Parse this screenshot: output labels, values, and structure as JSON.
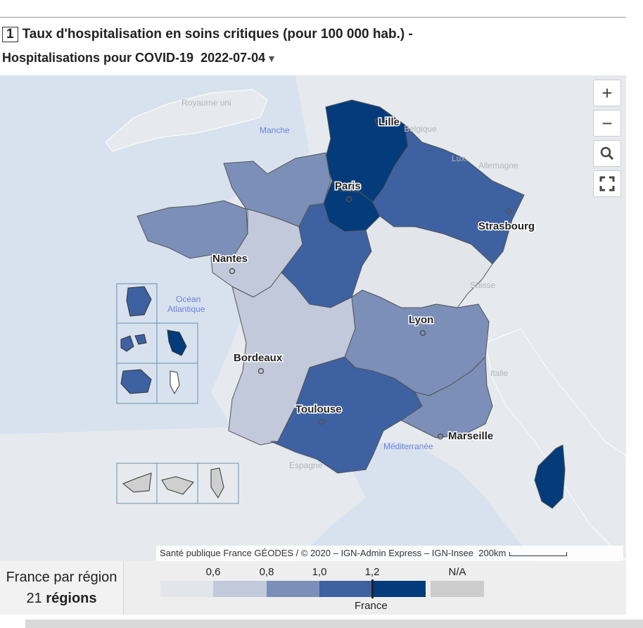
{
  "title": {
    "number": "1",
    "line1": "Taux d'hospitalisation en soins critiques (pour 100 000 hab.) -",
    "line2_prefix": "Hospitalisations pour COVID-19",
    "date": "2022-07-04",
    "date_arrow": "▼"
  },
  "map_controls": {
    "zoom_in": "+",
    "zoom_out": "−",
    "search_icon": "search-icon",
    "fullscreen_icon": "fullscreen-icon"
  },
  "cities": {
    "lille": "Lille",
    "paris": "Paris",
    "strasbourg": "Strasbourg",
    "nantes": "Nantes",
    "lyon": "Lyon",
    "bordeaux": "Bordeaux",
    "toulouse": "Toulouse",
    "marseille": "Marseille"
  },
  "countries": {
    "uk": "Royaume uni",
    "belgium": "Belgique",
    "lux": "Lux.",
    "germany": "Allemagne",
    "switzerland": "Suisse",
    "italy": "Italie",
    "spain": "Espagne"
  },
  "seas": {
    "manche": "Manche",
    "ocean1": "Océan",
    "ocean2": "Atlantique",
    "med": "Méditerranée"
  },
  "attribution": {
    "text": "Santé publique France GÉODES / © 2020 – IGN-Admin Express – IGN-Insee",
    "scale": "200km"
  },
  "summary": {
    "label": "France par région",
    "count": "21",
    "unit": "régions"
  },
  "legend": {
    "ticks": [
      "0,6",
      "0,8",
      "1,0",
      "1,2"
    ],
    "na_label": "N/A",
    "france_label": "France",
    "france_value": 1.2,
    "colors": [
      "#e2e6eb",
      "#c2c9da",
      "#7b8fb8",
      "#3d61a1",
      "#043b7a"
    ],
    "na_color": "#cccccc"
  },
  "colors": {
    "sea": "#d7e2ee",
    "land_foreign": "#e6eaee",
    "class1": "#e2e6eb",
    "class2": "#c2c9da",
    "class3": "#7b8fb8",
    "class4": "#3d61a1",
    "class5": "#043b7a"
  }
}
